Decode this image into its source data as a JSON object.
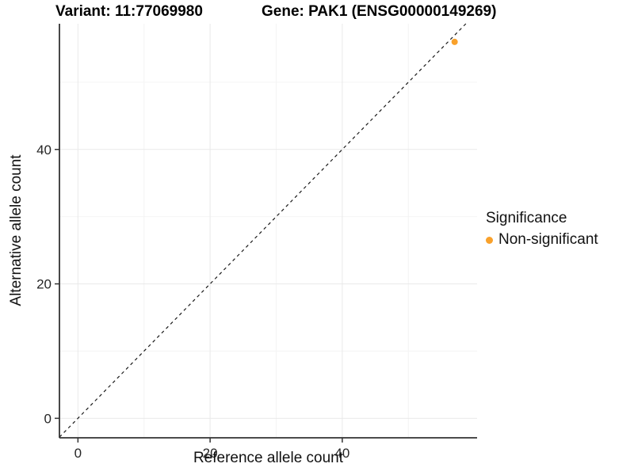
{
  "titles": {
    "left": "Variant: 11:77069980",
    "right": "Gene: PAK1 (ENSG00000149269)"
  },
  "chart_data": {
    "type": "scatter",
    "xlabel": "Reference allele count",
    "ylabel": "Alternative allele count",
    "xlim": [
      -2.8,
      60.4
    ],
    "ylim": [
      -2.9,
      58.7
    ],
    "x_ticks": [
      {
        "value": 0,
        "label": "0"
      },
      {
        "value": 20,
        "label": "20"
      },
      {
        "value": 40,
        "label": "40"
      }
    ],
    "y_ticks": [
      {
        "value": 0,
        "label": "0"
      },
      {
        "value": 20,
        "label": "20"
      },
      {
        "value": 40,
        "label": "40"
      }
    ],
    "x_minor": [
      10,
      30,
      50
    ],
    "y_minor": [
      10,
      30,
      50
    ],
    "grid": "major+minor, very light gray on white",
    "identity_line": {
      "slope": 1,
      "intercept": 0,
      "style": "dashed"
    },
    "points": [
      {
        "x": 57,
        "y": 56,
        "series": "Non-significant"
      }
    ],
    "legend": {
      "title": "Significance",
      "position": "right",
      "items": [
        {
          "label": "Non-significant",
          "color": "#F9A12B"
        }
      ]
    }
  },
  "colors": {
    "point": "#F9A12B",
    "axis_line": "#333333",
    "tick_label": "#262626",
    "grid_major": "#e9e9e9",
    "grid_minor": "#f4f4f4",
    "identity_line": "#1a1a1a",
    "background": "#ffffff"
  }
}
